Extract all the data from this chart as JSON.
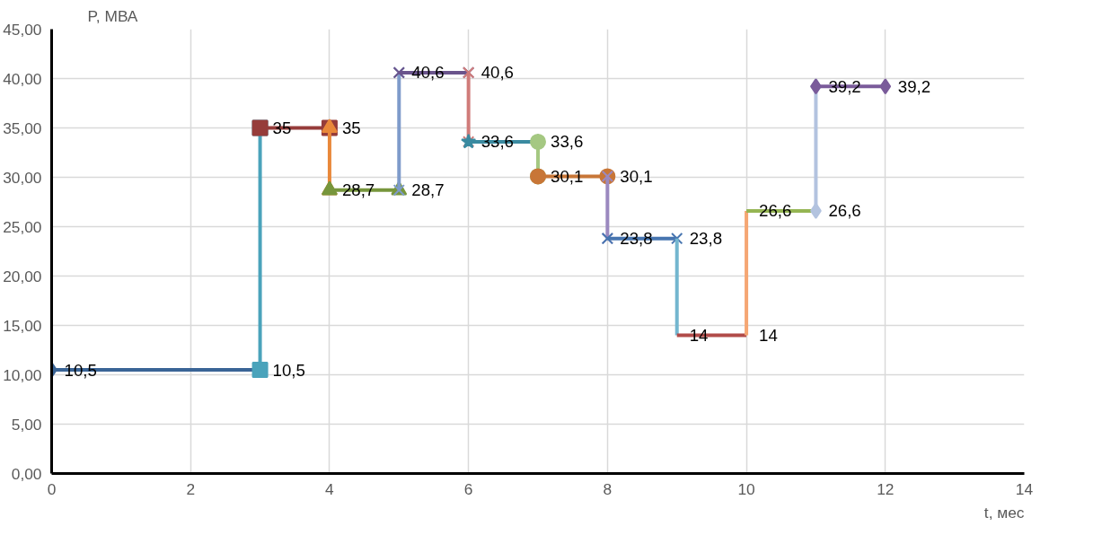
{
  "chart_data": {
    "type": "line",
    "xlabel": "t, мес",
    "ylabel": "P, МВА",
    "xlim": [
      0,
      14
    ],
    "xticks": [
      0,
      2,
      4,
      6,
      8,
      10,
      12,
      14
    ],
    "ylim": [
      0,
      45
    ],
    "yticks": [
      {
        "value": 0,
        "label": "0,00"
      },
      {
        "value": 5,
        "label": "5,00"
      },
      {
        "value": 10,
        "label": "10,00"
      },
      {
        "value": 15,
        "label": "15,00"
      },
      {
        "value": 20,
        "label": "20,00"
      },
      {
        "value": 25,
        "label": "25,00"
      },
      {
        "value": 30,
        "label": "30,00"
      },
      {
        "value": 35,
        "label": "35,00"
      },
      {
        "value": 40,
        "label": "40,00"
      },
      {
        "value": 45,
        "label": "45,00"
      }
    ],
    "grid": true,
    "series": [
      {
        "color": "#3a6496",
        "marker": "diamond",
        "x": [
          0,
          3
        ],
        "values": [
          10.5,
          10.5
        ],
        "value_labels": [
          "10,5",
          "10,5"
        ]
      },
      {
        "color": "#4aa3bb",
        "marker": "square",
        "x": [
          3,
          3
        ],
        "values": [
          10.5,
          35
        ],
        "value_labels": [
          null,
          "35"
        ]
      },
      {
        "color": "#963c3a",
        "marker": "square",
        "x": [
          3,
          4
        ],
        "values": [
          35,
          35
        ],
        "value_labels": [
          null,
          "35"
        ]
      },
      {
        "color": "#e9883a",
        "marker": "triangle",
        "x": [
          4,
          4
        ],
        "values": [
          35,
          28.7
        ],
        "value_labels": [
          null,
          "28,7"
        ]
      },
      {
        "color": "#77963c",
        "marker": "triangle",
        "x": [
          4,
          5
        ],
        "values": [
          28.7,
          28.7
        ],
        "value_labels": [
          null,
          "28,7"
        ]
      },
      {
        "color": "#7e9bca",
        "marker": "cross",
        "x": [
          5,
          5
        ],
        "values": [
          28.7,
          40.6
        ],
        "value_labels": [
          null,
          "40,6"
        ]
      },
      {
        "color": "#6a548c",
        "marker": "cross",
        "x": [
          5,
          6
        ],
        "values": [
          40.6,
          40.6
        ],
        "value_labels": [
          null,
          "40,6"
        ]
      },
      {
        "color": "#d07c7a",
        "marker": "cross",
        "x": [
          6,
          6
        ],
        "values": [
          40.6,
          33.6
        ],
        "value_labels": [
          null,
          "33,6"
        ]
      },
      {
        "color": "#3a8aa0",
        "marker": "star",
        "x": [
          6,
          7
        ],
        "values": [
          33.6,
          33.6
        ],
        "value_labels": [
          null,
          "33,6"
        ]
      },
      {
        "color": "#a5c882",
        "marker": "circle",
        "x": [
          7,
          7
        ],
        "values": [
          33.6,
          30.1
        ],
        "value_labels": [
          null,
          "30,1"
        ]
      },
      {
        "color": "#c87637",
        "marker": "circle",
        "x": [
          7,
          8
        ],
        "values": [
          30.1,
          30.1
        ],
        "value_labels": [
          null,
          "30,1"
        ]
      },
      {
        "color": "#9b89bf",
        "marker": "cross",
        "x": [
          8,
          8
        ],
        "values": [
          30.1,
          23.8
        ],
        "value_labels": [
          null,
          "23,8"
        ]
      },
      {
        "color": "#4775b0",
        "marker": "cross",
        "x": [
          8,
          9
        ],
        "values": [
          23.8,
          23.8
        ],
        "value_labels": [
          null,
          "23,8"
        ]
      },
      {
        "color": "#73b6cf",
        "marker": "none",
        "x": [
          9,
          9
        ],
        "values": [
          23.8,
          14
        ],
        "value_labels": [
          null,
          "14"
        ]
      },
      {
        "color": "#b14b49",
        "marker": "none",
        "x": [
          9,
          10
        ],
        "values": [
          14,
          14
        ],
        "value_labels": [
          null,
          "14"
        ]
      },
      {
        "color": "#f5a673",
        "marker": "none",
        "x": [
          10,
          10
        ],
        "values": [
          14,
          26.6
        ],
        "value_labels": [
          null,
          "26,6"
        ]
      },
      {
        "color": "#95b553",
        "marker": "none",
        "x": [
          10,
          11
        ],
        "values": [
          26.6,
          26.6
        ],
        "value_labels": [
          null,
          "26,6"
        ]
      },
      {
        "color": "#b3c3df",
        "marker": "diamond",
        "x": [
          11,
          11
        ],
        "values": [
          26.6,
          39.2
        ],
        "value_labels": [
          null,
          "39,2"
        ]
      },
      {
        "color": "#7a5b9a",
        "marker": "diamond",
        "x": [
          11,
          12
        ],
        "values": [
          39.2,
          39.2
        ],
        "value_labels": [
          null,
          "39,2"
        ]
      }
    ]
  }
}
